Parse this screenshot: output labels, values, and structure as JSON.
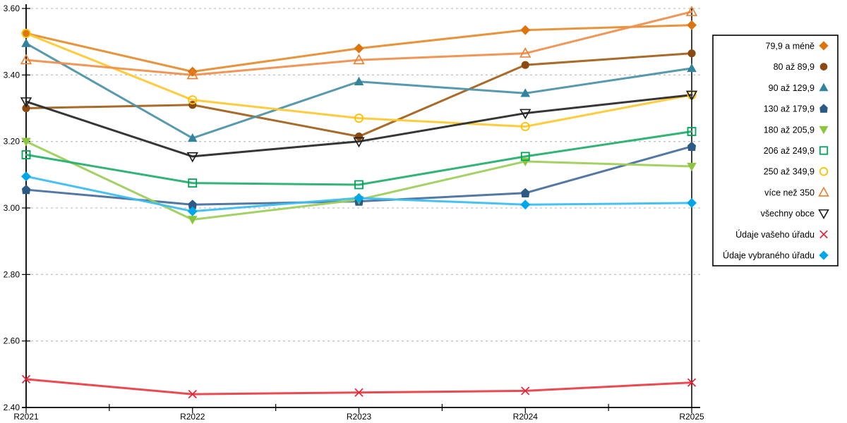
{
  "chart_data": {
    "type": "line",
    "title": "",
    "xlabel": "",
    "ylabel": "",
    "categories": [
      "R2021",
      "R2022",
      "R2023",
      "R2024",
      "R2025"
    ],
    "ylim": [
      2.4,
      3.6
    ],
    "ytick_step": 0.2,
    "ytick_labels": [
      "2.40",
      "2.60",
      "2.80",
      "3.00",
      "3.20",
      "3.40",
      "3.60"
    ],
    "grid": "horizontal-dashed",
    "gridline_color": "#c3c3c3",
    "axis_color": "#000000",
    "legend_position": "right",
    "series": [
      {
        "name": "79,9 a méně",
        "marker": "diamond",
        "filled": true,
        "color": "#DD750F",
        "line_color": "#E78E33",
        "values": [
          3.525,
          3.41,
          3.48,
          3.535,
          3.55
        ]
      },
      {
        "name": "80 až 89,9",
        "marker": "circle",
        "filled": true,
        "color": "#8B4A0F",
        "line_color": "#A3631F",
        "values": [
          3.3,
          3.31,
          3.215,
          3.43,
          3.465
        ]
      },
      {
        "name": "90 až 129,9",
        "marker": "triangle-up",
        "filled": true,
        "color": "#31849B",
        "line_color": "#4E93A9",
        "values": [
          3.495,
          3.21,
          3.38,
          3.345,
          3.42
        ]
      },
      {
        "name": "130 až 179,9",
        "marker": "pentagon",
        "filled": true,
        "color": "#2C5985",
        "line_color": "#49719E",
        "values": [
          3.055,
          3.01,
          3.02,
          3.045,
          3.185
        ]
      },
      {
        "name": "180 až 205,9",
        "marker": "triangle-down",
        "filled": true,
        "color": "#8CC63F",
        "line_color": "#9ECF5B",
        "values": [
          3.2,
          2.965,
          3.025,
          3.14,
          3.125
        ]
      },
      {
        "name": "206 až 249,9",
        "marker": "square",
        "filled": false,
        "color": "#00A35A",
        "line_color": "#27B06F",
        "values": [
          3.16,
          3.075,
          3.07,
          3.155,
          3.23
        ]
      },
      {
        "name": "250 až 349,9",
        "marker": "circle",
        "filled": false,
        "color": "#FFC000",
        "line_color": "#FFC933",
        "values": [
          3.525,
          3.325,
          3.27,
          3.245,
          3.34
        ]
      },
      {
        "name": "více než 350",
        "marker": "triangle-up",
        "filled": false,
        "color": "#ED7D31",
        "line_color": "#F0904E",
        "values": [
          3.445,
          3.4,
          3.445,
          3.465,
          3.59
        ]
      },
      {
        "name": "všechny obce",
        "marker": "triangle-down",
        "filled": false,
        "color": "#1A1A1A",
        "line_color": "#2B2B2B",
        "values": [
          3.32,
          3.155,
          3.2,
          3.285,
          3.34
        ]
      },
      {
        "name": "Údaje vašeho úřadu",
        "marker": "x",
        "filled": false,
        "color": "#E32238",
        "line_color": "#EA4048",
        "values": [
          2.485,
          2.44,
          2.445,
          2.45,
          2.475
        ]
      },
      {
        "name": "Údaje vybraného úřadu",
        "marker": "diamond",
        "filled": true,
        "color": "#00A7E8",
        "line_color": "#3DBEF0",
        "values": [
          3.095,
          2.99,
          3.03,
          3.01,
          3.015
        ]
      }
    ]
  }
}
